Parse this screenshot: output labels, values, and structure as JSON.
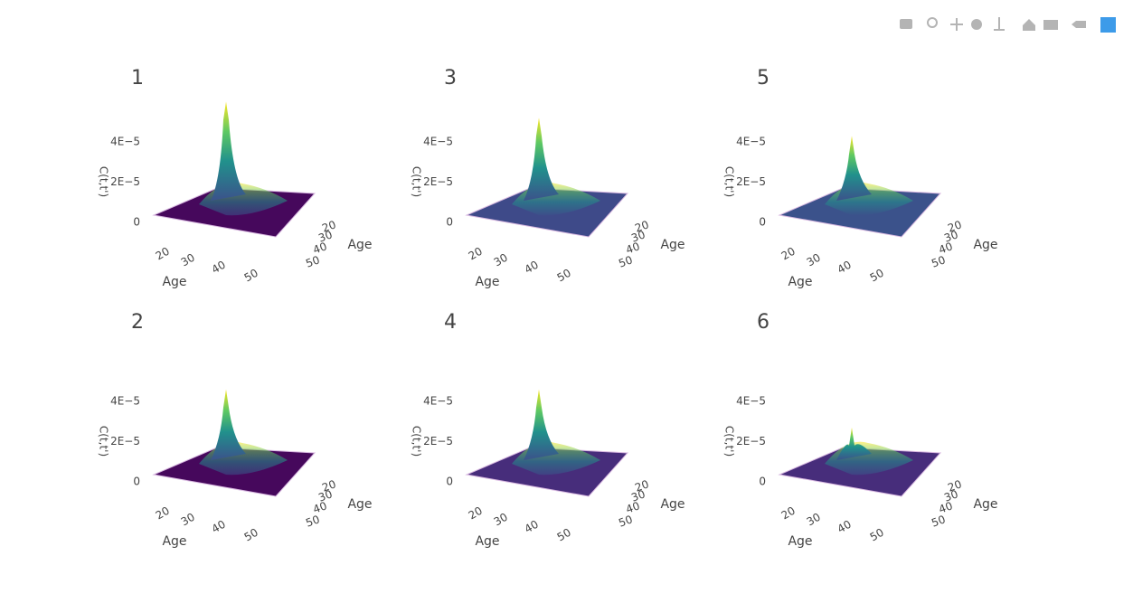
{
  "chart_data": [
    {
      "type": "surface",
      "title": "1",
      "zlabel": "C(t,t')",
      "xlabel": "Age",
      "ylabel": "Age",
      "xticks": [
        20,
        30,
        40,
        50
      ],
      "yticks": [
        20,
        30,
        40,
        50
      ],
      "zlim": [
        0,
        6e-05
      ],
      "zticks": [
        0,
        {
          "value": 2e-05,
          "label": "2E−5"
        },
        {
          "value": 4e-05,
          "label": "4E−5"
        }
      ],
      "peak": 6e-05,
      "color": "#46085c"
    },
    {
      "type": "surface",
      "title": "2",
      "zlabel": "C(t,t')",
      "xlabel": "Age",
      "ylabel": "Age",
      "xticks": [
        20,
        30,
        40,
        50
      ],
      "yticks": [
        20,
        30,
        40,
        50
      ],
      "zlim": [
        0,
        6e-05
      ],
      "zticks": [
        0,
        {
          "value": 2e-05,
          "label": "2E−5"
        },
        {
          "value": 4e-05,
          "label": "4E−5"
        }
      ],
      "peak": 4.6e-05,
      "color": "#46085c"
    },
    {
      "type": "surface",
      "title": "3",
      "zlabel": "C(t,t')",
      "xlabel": "Age",
      "ylabel": "Age",
      "xticks": [
        20,
        30,
        40,
        50
      ],
      "yticks": [
        20,
        30,
        40,
        50
      ],
      "zlim": [
        0,
        6e-05
      ],
      "zticks": [
        0,
        {
          "value": 2e-05,
          "label": "2E−5"
        },
        {
          "value": 4e-05,
          "label": "4E−5"
        }
      ],
      "peak": 5.2e-05,
      "color": "#3e4a89"
    },
    {
      "type": "surface",
      "title": "4",
      "zlabel": "C(t,t')",
      "xlabel": "Age",
      "ylabel": "Age",
      "xticks": [
        20,
        30,
        40,
        50
      ],
      "yticks": [
        20,
        30,
        40,
        50
      ],
      "zlim": [
        0,
        6e-05
      ],
      "zticks": [
        0,
        {
          "value": 2e-05,
          "label": "2E−5"
        },
        {
          "value": 4e-05,
          "label": "4E−5"
        }
      ],
      "peak": 4.6e-05,
      "color": "#472d7b"
    },
    {
      "type": "surface",
      "title": "5",
      "zlabel": "C(t,t')",
      "xlabel": "Age",
      "ylabel": "Age",
      "xticks": [
        20,
        30,
        40,
        50
      ],
      "yticks": [
        20,
        30,
        40,
        50
      ],
      "zlim": [
        0,
        6e-05
      ],
      "zticks": [
        0,
        {
          "value": 2e-05,
          "label": "2E−5"
        },
        {
          "value": 4e-05,
          "label": "4E−5"
        }
      ],
      "peak": 4.3e-05,
      "color": "#3b528b"
    },
    {
      "type": "surface",
      "title": "6",
      "zlabel": "C(t,t')",
      "xlabel": "Age",
      "ylabel": "Age",
      "xticks": [
        20,
        30,
        40,
        50
      ],
      "yticks": [
        20,
        30,
        40,
        50
      ],
      "zlim": [
        0,
        6e-05
      ],
      "zticks": [
        0,
        {
          "value": 2e-05,
          "label": "2E−5"
        },
        {
          "value": 4e-05,
          "label": "4E−5"
        }
      ],
      "peak": 2.7e-05,
      "color": "#472d7b"
    }
  ]
}
